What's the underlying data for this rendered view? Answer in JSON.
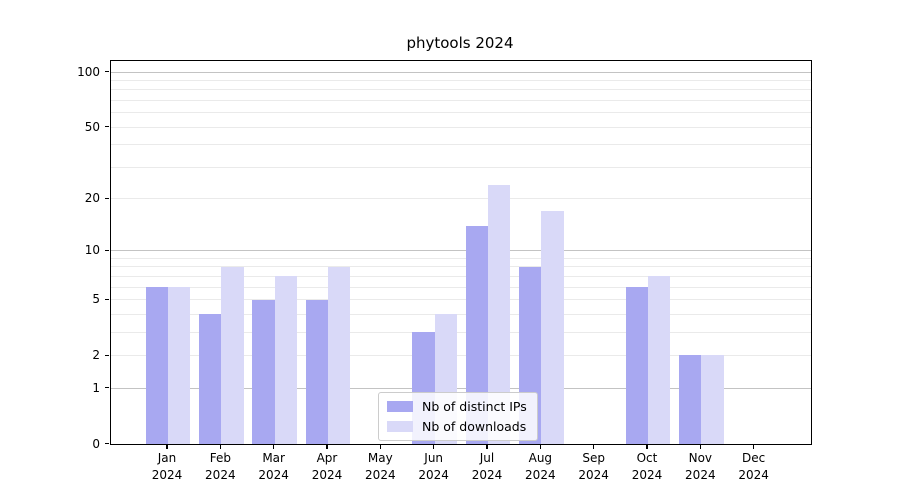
{
  "title": "phytools 2024",
  "legend": {
    "items": [
      {
        "label": "Nb of distinct IPs",
        "color": "#a8a8f1"
      },
      {
        "label": "Nb of downloads",
        "color": "#d9d9f8"
      }
    ]
  },
  "chart_data": {
    "type": "bar",
    "title": "phytools 2024",
    "categories": [
      "Jan",
      "Feb",
      "Mar",
      "Apr",
      "May",
      "Jun",
      "Jul",
      "Aug",
      "Sep",
      "Oct",
      "Nov",
      "Dec"
    ],
    "year_suffix": "2024",
    "series": [
      {
        "name": "Nb of distinct IPs",
        "color": "#a8a8f1",
        "values": [
          6,
          4,
          5,
          5,
          0,
          3,
          14,
          8,
          0,
          6,
          2,
          0
        ]
      },
      {
        "name": "Nb of downloads",
        "color": "#d9d9f8",
        "values": [
          6,
          8,
          7,
          8,
          0,
          4,
          24,
          17,
          0,
          7,
          2,
          0
        ]
      }
    ],
    "xlabel": "",
    "ylabel": "",
    "yscale": "log1p",
    "ylim": [
      0,
      115
    ],
    "yticks": [
      0,
      1,
      2,
      5,
      10,
      20,
      50,
      100
    ],
    "major_grid_values": [
      1,
      10,
      100
    ],
    "minor_grid_values": [
      2,
      3,
      4,
      5,
      6,
      7,
      8,
      9,
      20,
      30,
      40,
      50,
      60,
      70,
      80,
      90
    ],
    "grid": "on",
    "legend_position": "inside lower center"
  },
  "colors": {
    "major_grid": "#c3c3c3",
    "minor_grid": "#eaeaea",
    "axis": "#000000",
    "legend_border": "#cccccc"
  }
}
